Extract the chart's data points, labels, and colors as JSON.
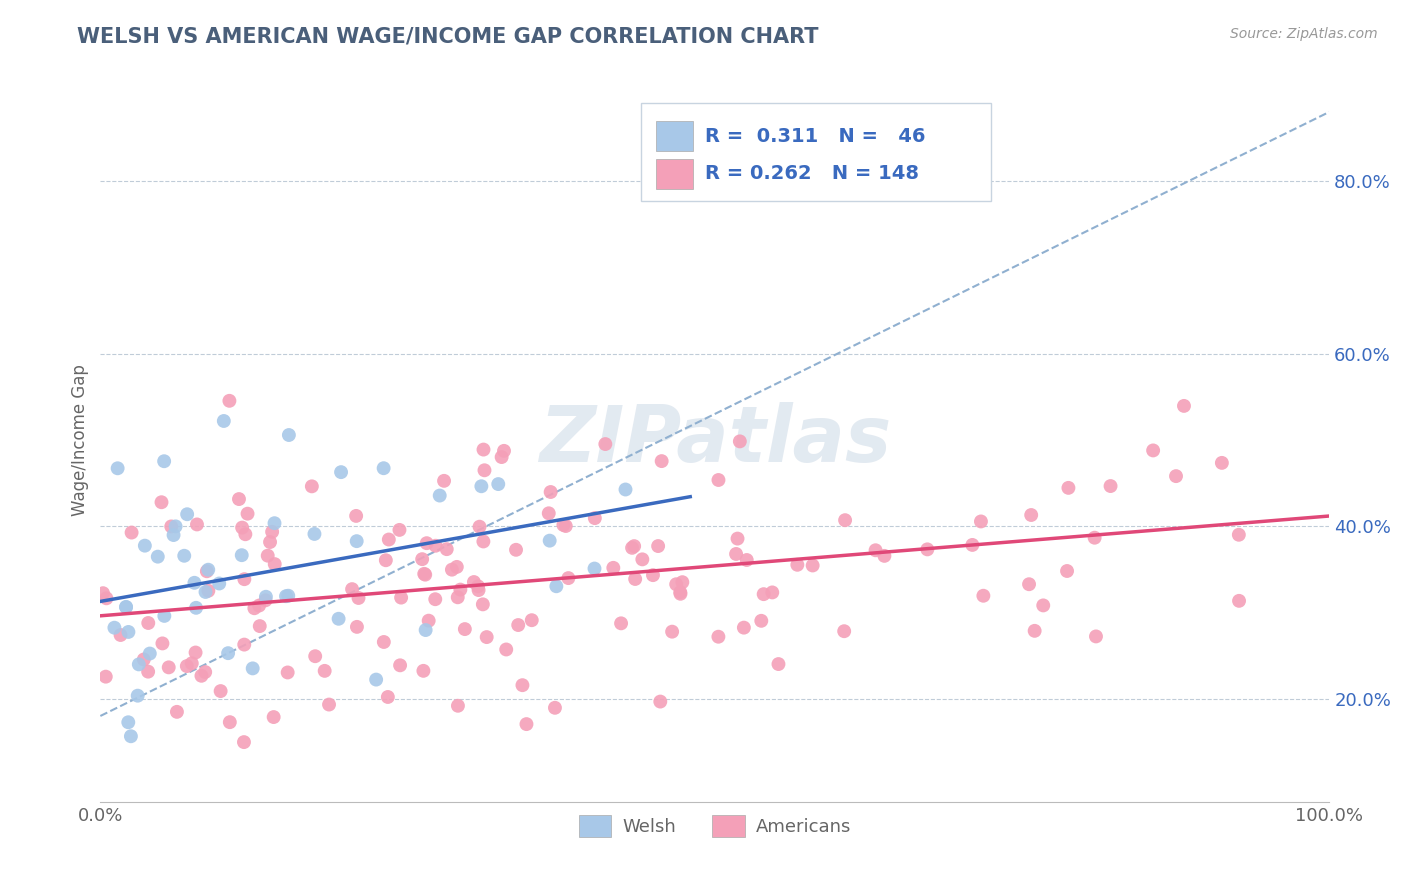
{
  "title": "WELSH VS AMERICAN WAGE/INCOME GAP CORRELATION CHART",
  "source": "Source: ZipAtlas.com",
  "ylabel": "Wage/Income Gap",
  "welsh_R": 0.311,
  "welsh_N": 46,
  "american_R": 0.262,
  "american_N": 148,
  "welsh_color": "#a8c8e8",
  "american_color": "#f4a0b8",
  "welsh_line_color": "#3a6abf",
  "american_line_color": "#e04878",
  "trendline_dashed_color": "#90b0d0",
  "background_color": "#ffffff",
  "grid_color": "#c0ccd8",
  "title_color": "#4a5f7a",
  "watermark_color": "#d0dce8",
  "legend_R_color": "#3a6abf",
  "tick_color": "#3a6abf",
  "label_color": "#666666",
  "x_min": 0.0,
  "x_max": 1.0,
  "y_min": 0.08,
  "y_max": 0.92
}
